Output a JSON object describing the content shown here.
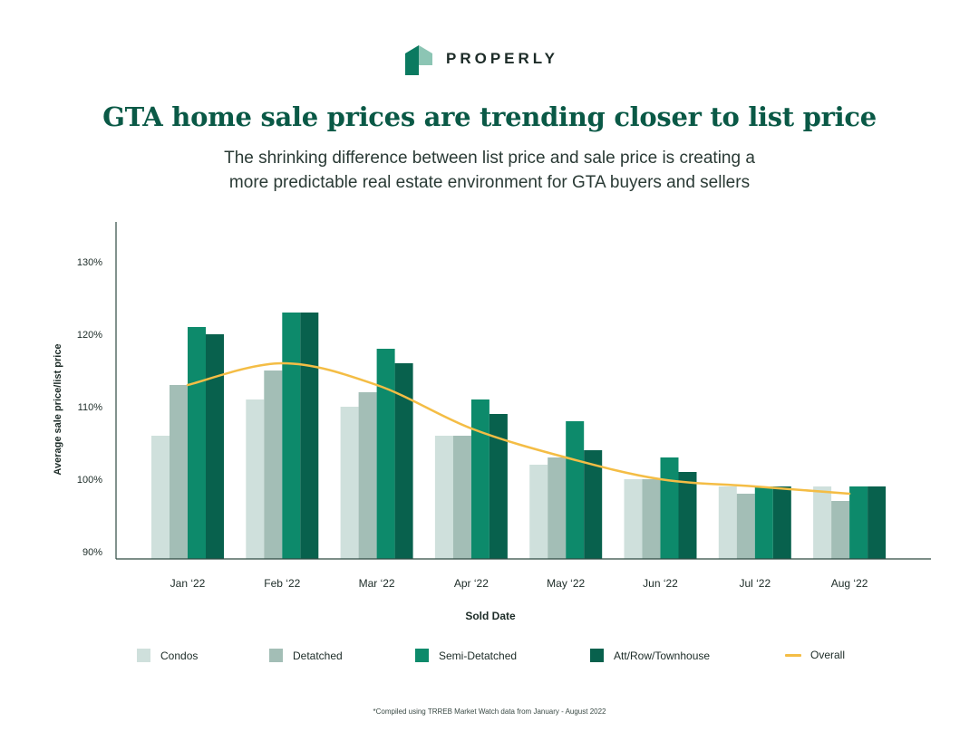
{
  "brand": {
    "name": "PROPERLY",
    "icon": "properly-house-logo",
    "colors": {
      "light": "#8cc5b4",
      "dark": "#0b7a60"
    }
  },
  "header": {
    "title": "GTA home sale prices are trending closer to list price",
    "subtitle_line1": "The shrinking difference between list price and sale price is creating a",
    "subtitle_line2": "more predictable real estate environment for GTA buyers and sellers"
  },
  "chart_data": {
    "type": "bar",
    "title": "GTA home sale prices are trending closer to list price",
    "xlabel": "Sold Date",
    "ylabel": "Average sale price/list price",
    "categories": [
      "Jan ‘22",
      "Feb ‘22",
      "Mar ‘22",
      "Apr ‘22",
      "May ‘22",
      "Jun ‘22",
      "Jul ‘22",
      "Aug ‘22"
    ],
    "ylim": [
      90,
      130
    ],
    "yticks": [
      90,
      100,
      110,
      120,
      130
    ],
    "ytick_labels": [
      "90%",
      "100%",
      "110%",
      "120%",
      "130%"
    ],
    "grid": false,
    "legend_position": "bottom",
    "series": [
      {
        "name": "Condos",
        "kind": "bar",
        "color": "#cfe0dc",
        "values": [
          106,
          111,
          110,
          106,
          102,
          100,
          99,
          99
        ]
      },
      {
        "name": "Detatched",
        "kind": "bar",
        "color": "#a3beb6",
        "values": [
          113,
          115,
          112,
          106,
          103,
          100,
          98,
          97
        ]
      },
      {
        "name": "Semi-Detatched",
        "kind": "bar",
        "color": "#0d8a6b",
        "values": [
          121,
          123,
          118,
          111,
          108,
          103,
          99,
          99
        ]
      },
      {
        "name": "Att/Row/Townhouse",
        "kind": "bar",
        "color": "#08614d",
        "values": [
          120,
          123,
          116,
          109,
          104,
          101,
          99,
          99
        ]
      },
      {
        "name": "Overall",
        "kind": "line",
        "color": "#f4bd45",
        "values": [
          113,
          116,
          113,
          107,
          103,
          100,
          99,
          98
        ]
      }
    ]
  },
  "footnote": "*Compiled using TRREB Market Watch data from January - August 2022"
}
